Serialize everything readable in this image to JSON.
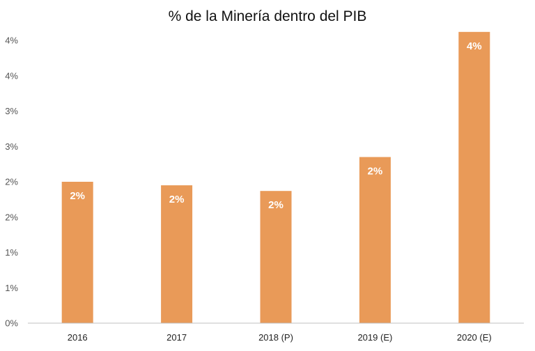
{
  "chart_data": {
    "type": "bar",
    "title": "% de la Minería dentro del PIB",
    "xlabel": "",
    "ylabel": "",
    "categories": [
      "2016",
      "2017",
      "2018 (P)",
      "2019 (E)",
      "2020 (E)"
    ],
    "values": [
      2.0,
      1.95,
      1.87,
      2.35,
      4.12
    ],
    "data_labels": [
      "2%",
      "2%",
      "2%",
      "2%",
      "4%"
    ],
    "ylim": [
      0,
      4
    ],
    "y_ticks": [
      0,
      0.5,
      1,
      1.5,
      2,
      2.5,
      3,
      3.5,
      4
    ],
    "y_tick_labels": [
      "0%",
      "1%",
      "1%",
      "2%",
      "2%",
      "3%",
      "3%",
      "4%",
      "4%"
    ],
    "grid": false,
    "legend": "none",
    "bar_color": "#E99A58",
    "axis_color": "#BFBFBF"
  }
}
